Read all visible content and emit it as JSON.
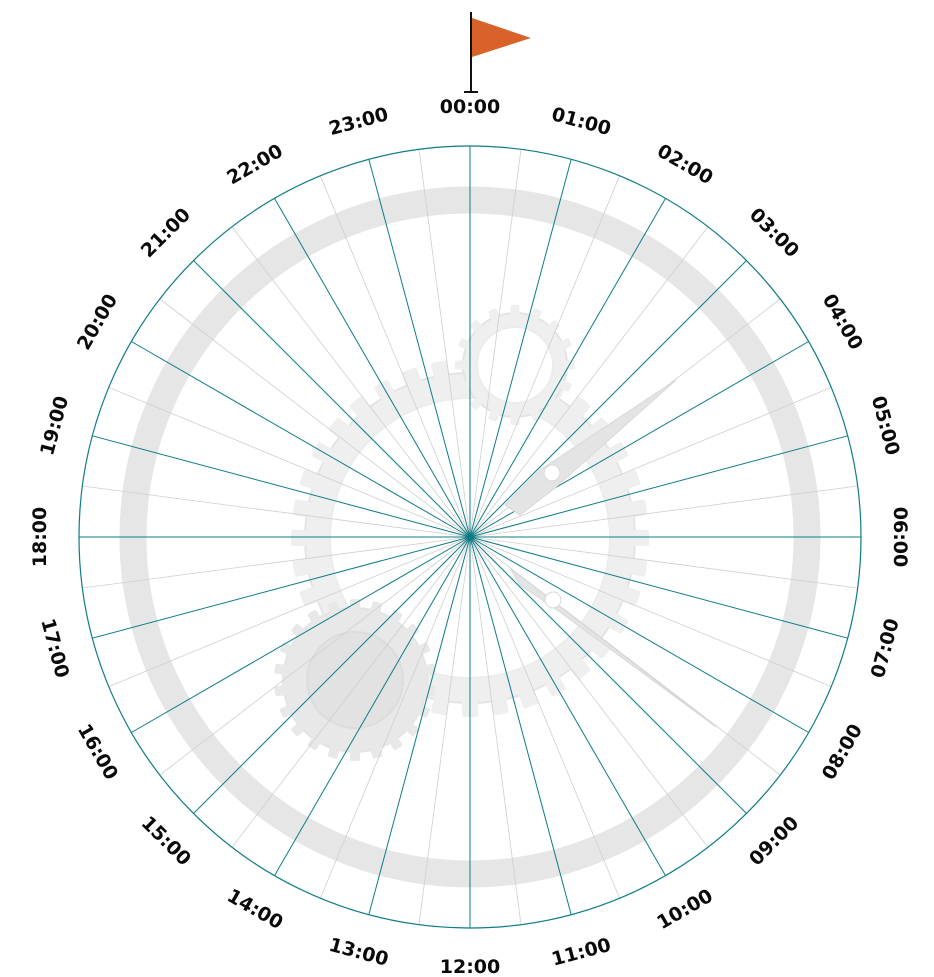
{
  "dial": {
    "hour_labels": [
      "00:00",
      "01:00",
      "02:00",
      "03:00",
      "04:00",
      "05:00",
      "06:00",
      "07:00",
      "08:00",
      "09:00",
      "10:00",
      "11:00",
      "12:00",
      "13:00",
      "14:00",
      "15:00",
      "16:00",
      "17:00",
      "18:00",
      "19:00",
      "20:00",
      "21:00",
      "22:00",
      "23:00"
    ],
    "subdivisions_per_hour": 2
  },
  "flag": {
    "position": "00:00"
  },
  "colors": {
    "grid_line": "#0e7c86",
    "minor_line": "#cfcfcf",
    "band": "#e6e6e6",
    "flag": "#d9622b",
    "gear": "#efefef"
  },
  "icons": [
    "flag-icon",
    "gear-icon",
    "hand-icon"
  ]
}
